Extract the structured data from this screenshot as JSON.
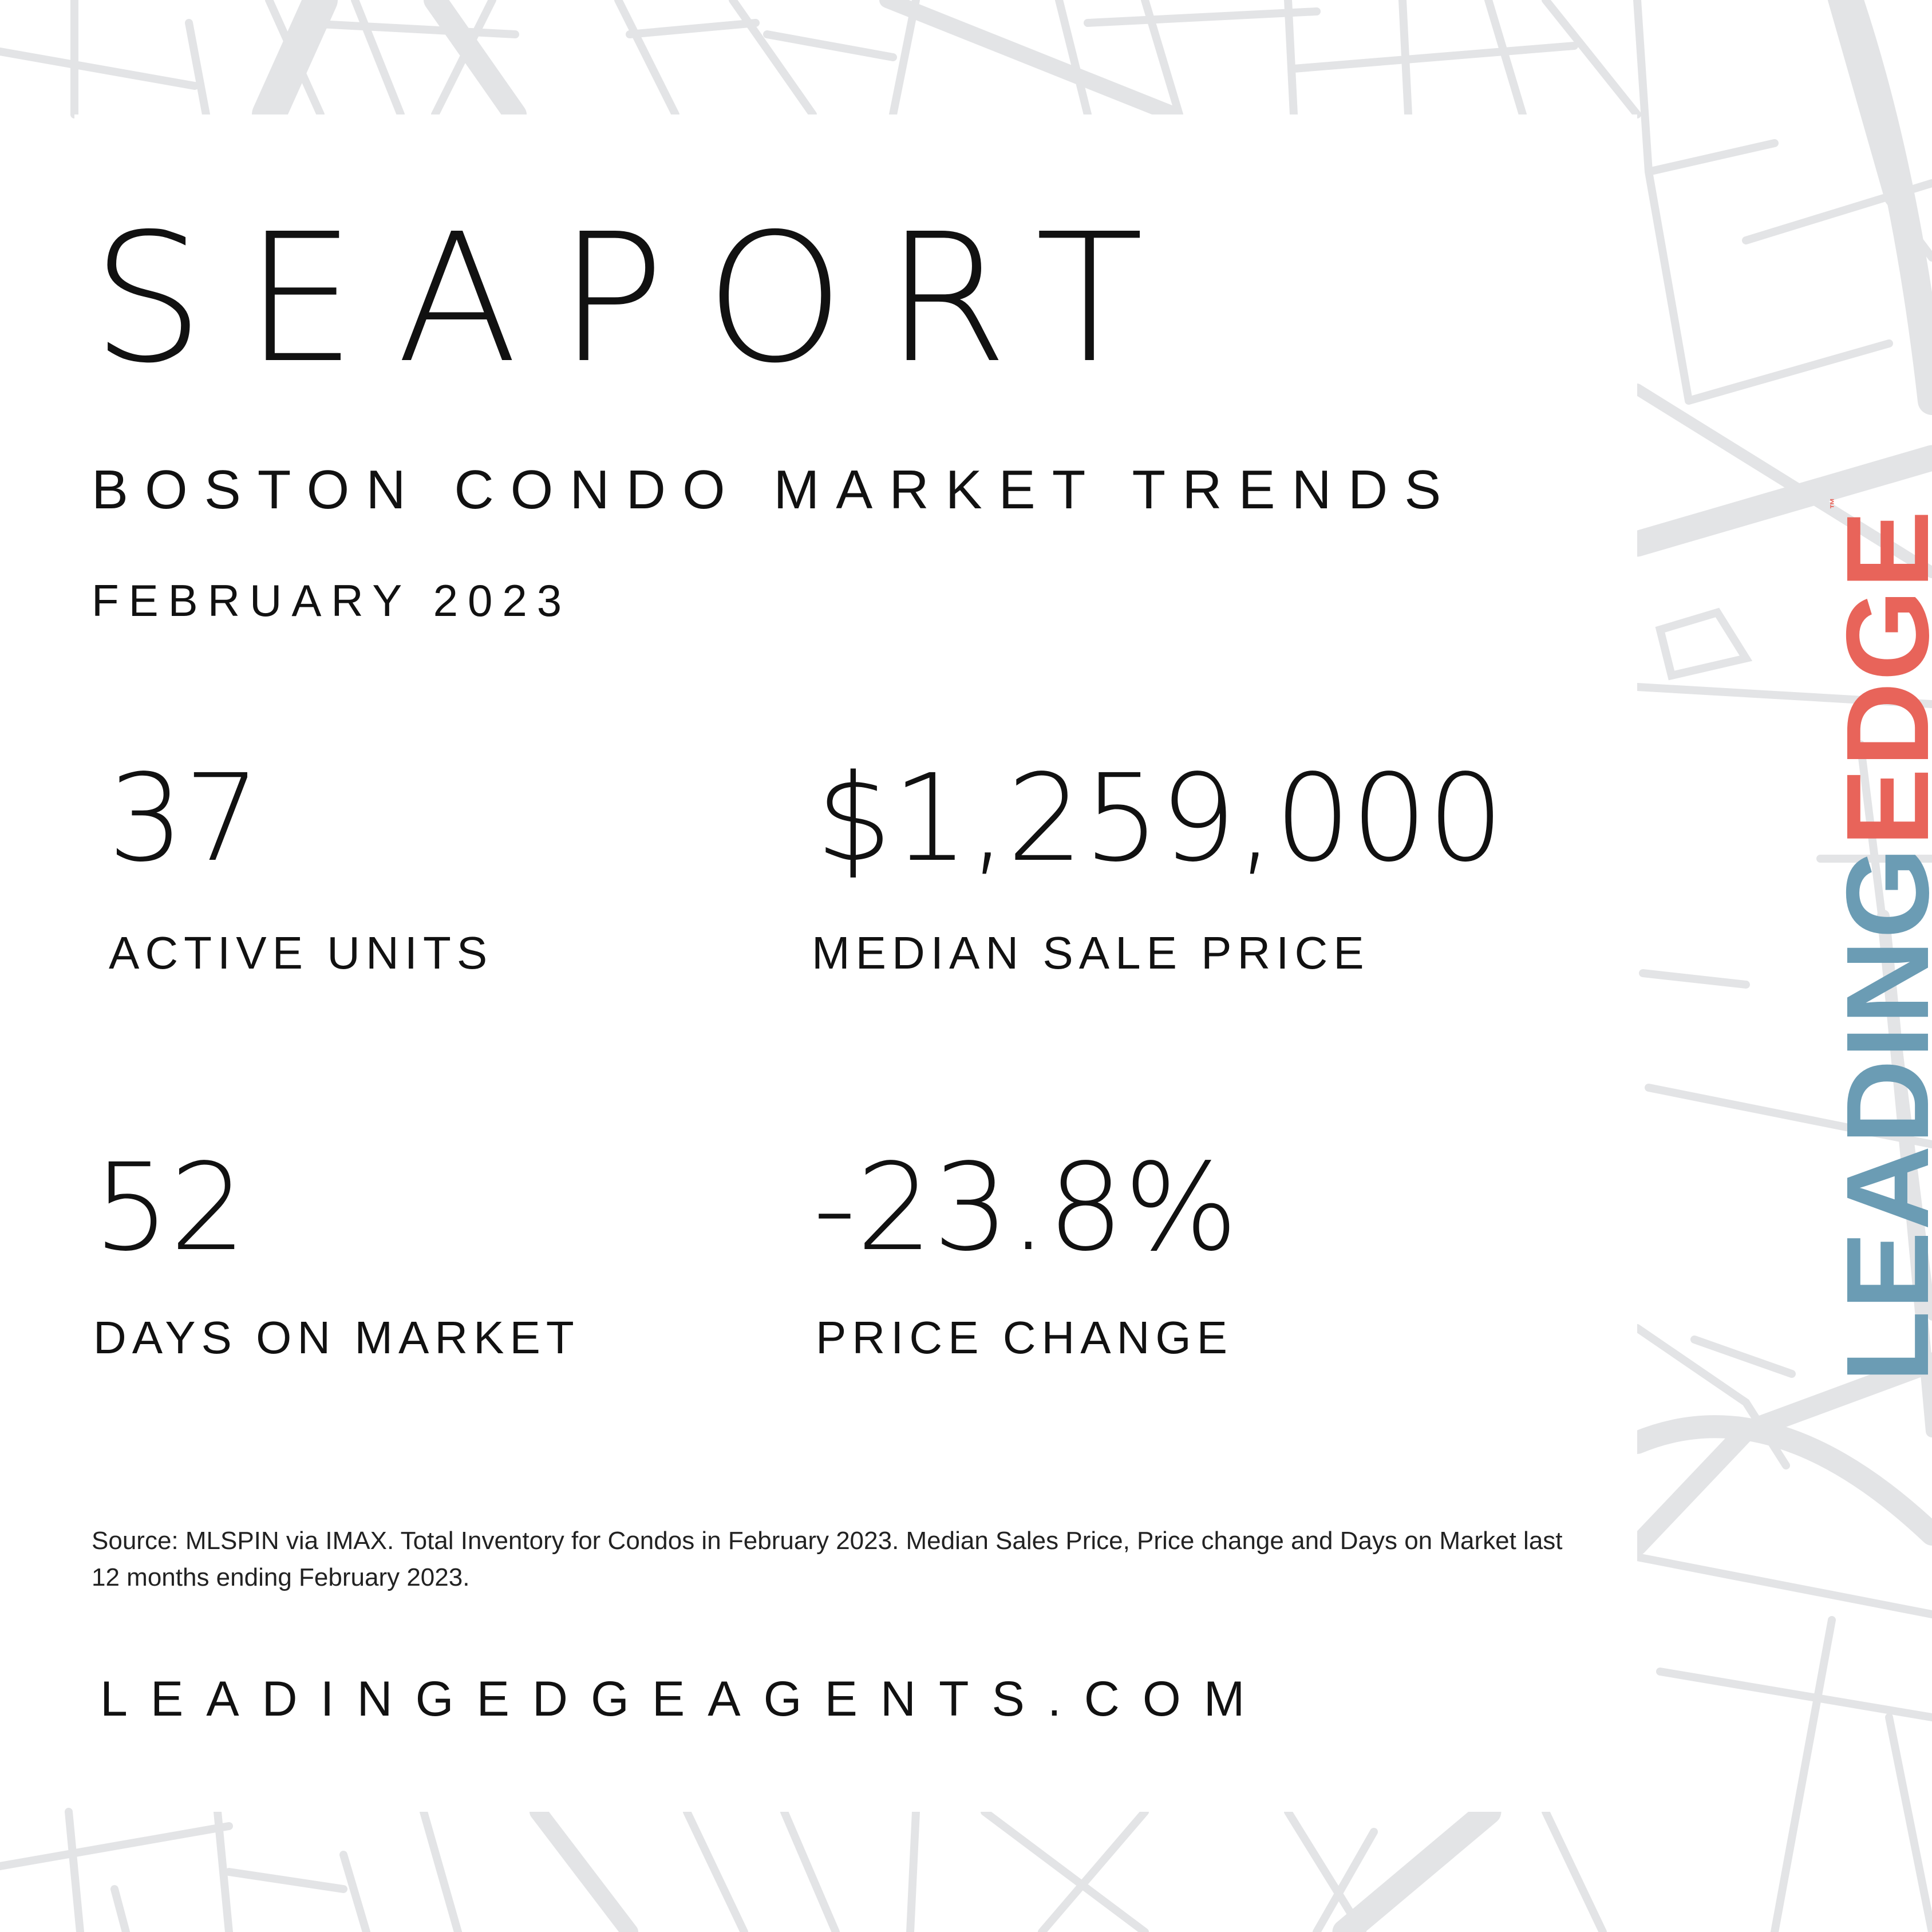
{
  "title": "SEAPORT",
  "subtitle": "BOSTON CONDO MARKET TRENDS",
  "date": "FEBRUARY 2023",
  "stats": [
    {
      "value": "37",
      "label": "ACTIVE UNITS"
    },
    {
      "value": "$1,259,000",
      "label": "MEDIAN SALE PRICE"
    },
    {
      "value": "52",
      "label": "DAYS ON MARKET"
    },
    {
      "value": "-23.8%",
      "label": "PRICE CHANGE"
    }
  ],
  "source": "Source: MLSPIN via IMAX. Total Inventory for Condos in February 2023. Median Sales Price, Price change and Days on Market last 12 months ending February 2023.",
  "website": "LEADINGEDGEAGENTS.COM",
  "logo": {
    "part1": "LEADING",
    "part2": "EDGE",
    "mark": "™"
  },
  "colors": {
    "logo_blue": "#6b9cb4",
    "logo_red": "#e8645a",
    "map_lines": "#e3e4e6"
  }
}
